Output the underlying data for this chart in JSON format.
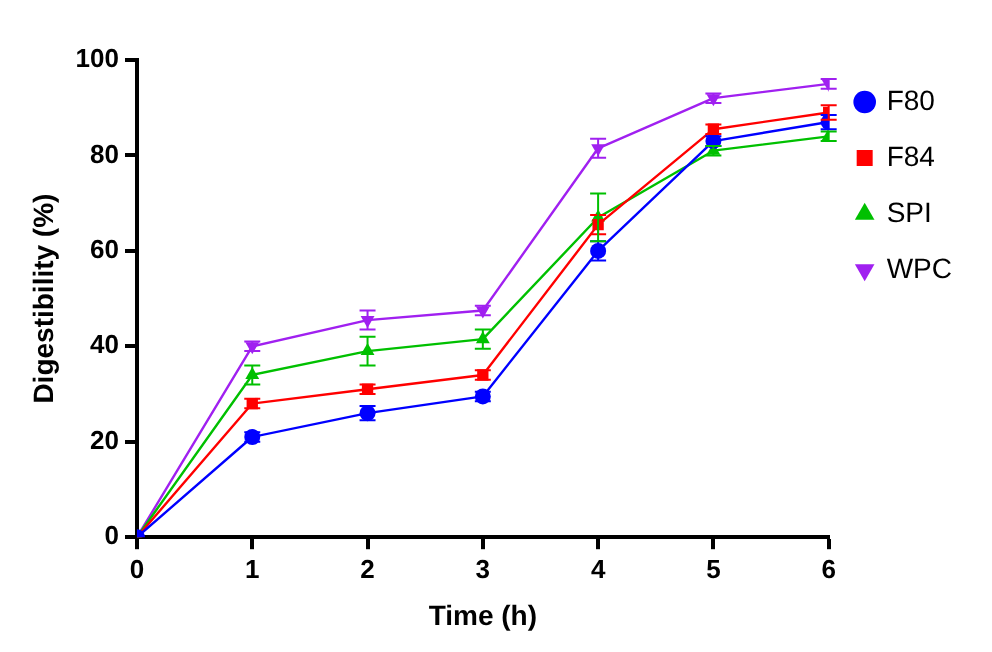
{
  "chart_data": {
    "type": "line",
    "xlabel": "Time (h)",
    "ylabel": "Digestibility (%)",
    "x": [
      0,
      1,
      2,
      3,
      4,
      5,
      6
    ],
    "xlim": [
      0,
      6
    ],
    "xticks": [
      0,
      1,
      2,
      3,
      4,
      5,
      6
    ],
    "ylim": [
      0,
      100
    ],
    "yticks": [
      0,
      20,
      40,
      60,
      80,
      100
    ],
    "grid": false,
    "legend": "right",
    "series": [
      {
        "name": "F80",
        "color": "#0000ff",
        "marker": "circle",
        "values": [
          0,
          21,
          26,
          29.5,
          60,
          83,
          87
        ],
        "errors": [
          null,
          1,
          1.5,
          1,
          2,
          1,
          1.5
        ]
      },
      {
        "name": "F84",
        "color": "#ff0000",
        "marker": "square",
        "values": [
          0,
          28,
          31,
          34,
          65.5,
          85.5,
          89
        ],
        "errors": [
          null,
          1,
          1,
          1,
          2,
          1,
          1.5
        ]
      },
      {
        "name": "SPI",
        "color": "#00c000",
        "marker": "triangle",
        "values": [
          0,
          34,
          39,
          41.5,
          67,
          81,
          84
        ],
        "errors": [
          null,
          2,
          3,
          2,
          5,
          1,
          1
        ]
      },
      {
        "name": "WPC",
        "color": "#a020f0",
        "marker": "triangle-down",
        "values": [
          0,
          40,
          45.5,
          47.5,
          81.5,
          92,
          95
        ],
        "errors": [
          null,
          1,
          2,
          1,
          2,
          1,
          1
        ]
      }
    ]
  }
}
